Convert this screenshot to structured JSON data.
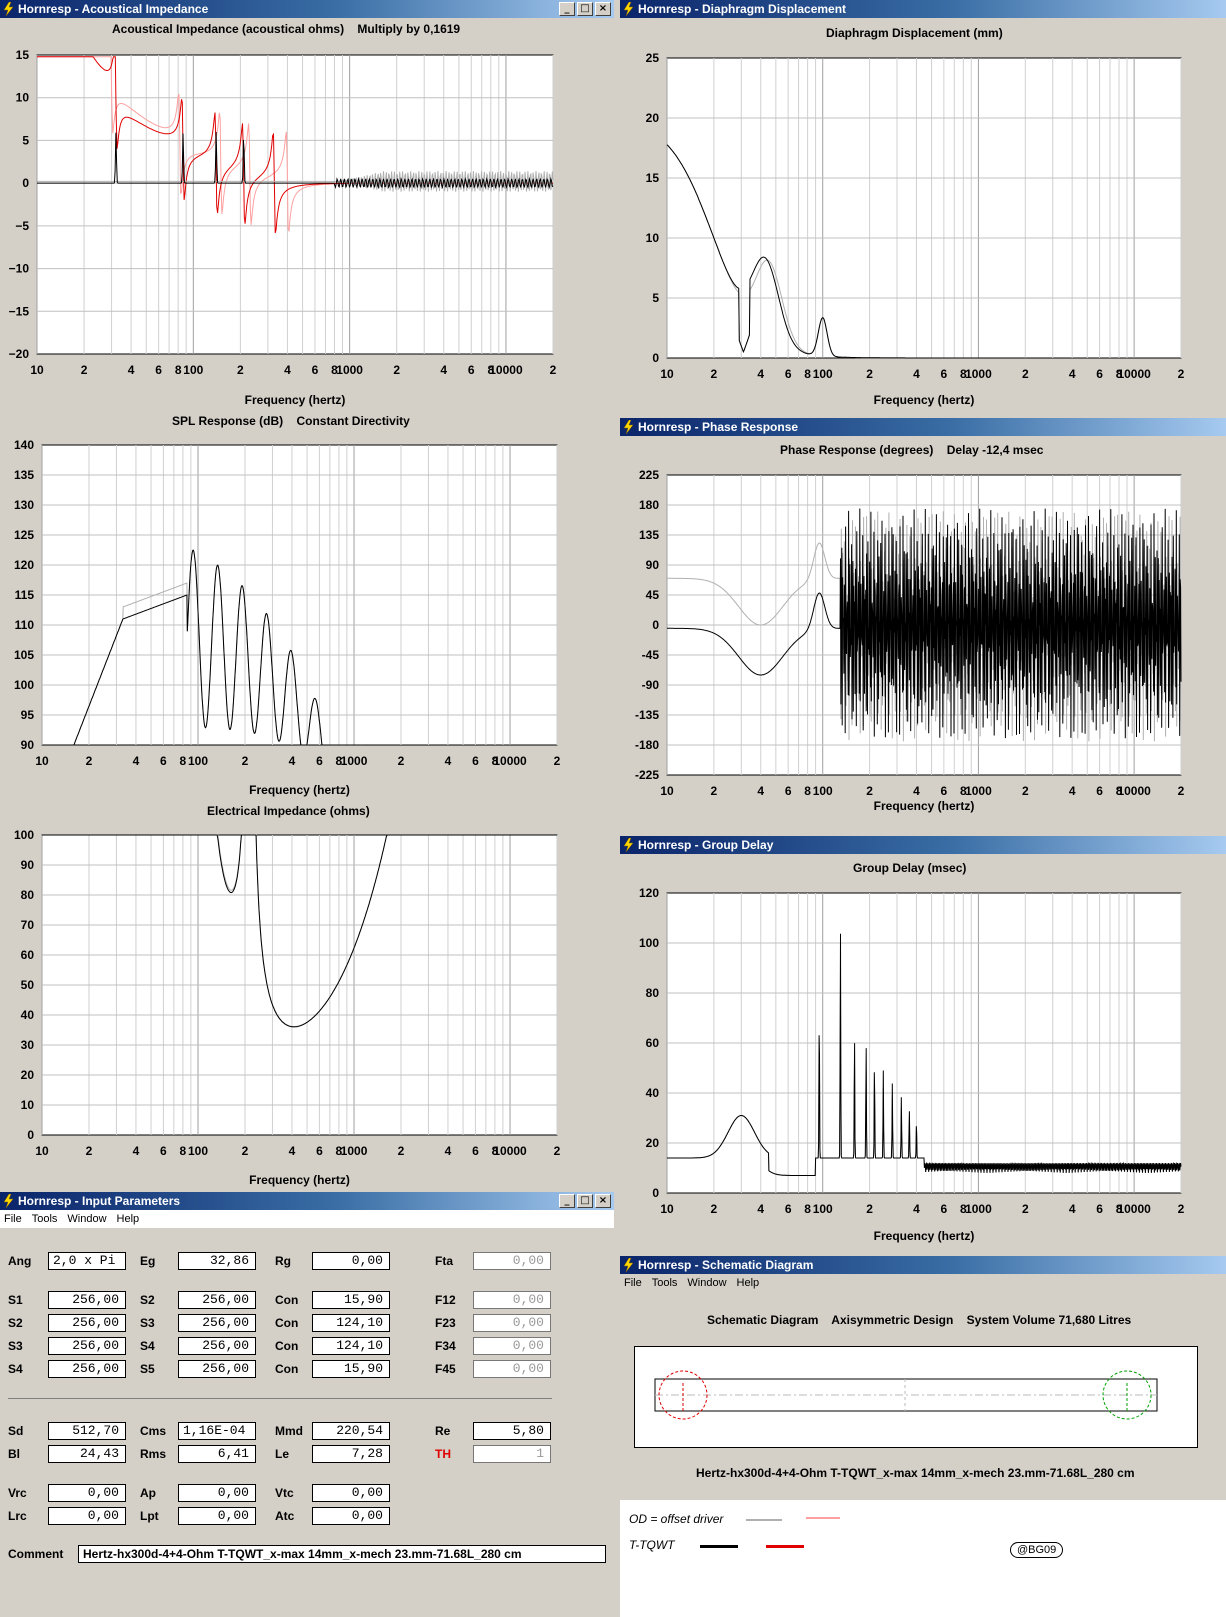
{
  "app_name": "Hornresp",
  "title_sep": " - ",
  "windows": {
    "acoustical": {
      "title": "Acoustical Impedance",
      "header": "Acoustical Impedance (acoustical ohms)    Multiply by 0,1619",
      "yticks": [
        "15",
        "10",
        "5",
        "0",
        "−5",
        "−10",
        "−15",
        "−20"
      ],
      "xlabel": "Frequency (hertz)"
    },
    "spl": {
      "header": "SPL Response (dB)    Constant Directivity",
      "yticks": [
        "140",
        "135",
        "130",
        "125",
        "120",
        "115",
        "110",
        "105",
        "100",
        "95",
        "90"
      ],
      "xlabel": "Frequency (hertz)"
    },
    "elec": {
      "header": "Electrical Impedance (ohms)",
      "yticks": [
        "100",
        "90",
        "80",
        "70",
        "60",
        "50",
        "40",
        "30",
        "20",
        "10",
        "0"
      ],
      "xlabel": "Frequency (hertz)"
    },
    "displacement": {
      "title": "Diaphragm Displacement",
      "header": "Diaphragm Displacement (mm)",
      "yticks": [
        "25",
        "20",
        "15",
        "10",
        "5",
        "0"
      ],
      "xlabel": "Frequency (hertz)"
    },
    "phase": {
      "title": "Phase Response",
      "header": "Phase Response (degrees)    Delay -12,4 msec",
      "yticks": [
        "225",
        "180",
        "135",
        "90",
        "45",
        "0",
        "-45",
        "-90",
        "-135",
        "-180",
        "-225"
      ],
      "xlabel": "Frequency (hertz)"
    },
    "group": {
      "title": "Group Delay",
      "header": "Group Delay (msec)",
      "yticks": [
        "120",
        "100",
        "80",
        "60",
        "40",
        "20",
        "0"
      ],
      "xlabel": "Frequency (hertz)"
    },
    "input": {
      "title": "Input Parameters"
    },
    "schematic": {
      "title": "Schematic Diagram",
      "header": "Schematic Diagram    Axisymmetric Design    System Volume 71,680 Litres",
      "caption": "Hertz-hx300d-4+4-Ohm T-TQWT_x-max 14mm_x-mech 23.mm-71.68L_280 cm"
    }
  },
  "xticks": [
    "10",
    "2",
    "4",
    "6",
    "8",
    "100",
    "2",
    "4",
    "6",
    "8",
    "1000",
    "2",
    "4",
    "6",
    "8",
    "10000",
    "2"
  ],
  "menu": [
    "File",
    "Tools",
    "Window",
    "Help"
  ],
  "params": {
    "rows1": [
      [
        {
          "l": "Ang",
          "v": "2,0 x Pi",
          "left": true
        },
        {
          "l": "Eg",
          "v": "32,86"
        },
        {
          "l": "Rg",
          "v": "0,00"
        },
        {
          "l": "Fta",
          "v": "0,00",
          "dis": true
        }
      ]
    ],
    "rows2": [
      [
        {
          "l": "S1",
          "v": "256,00"
        },
        {
          "l": "S2",
          "v": "256,00"
        },
        {
          "l": "Con",
          "v": "15,90"
        },
        {
          "l": "F12",
          "v": "0,00",
          "dis": true
        }
      ],
      [
        {
          "l": "S2",
          "v": "256,00"
        },
        {
          "l": "S3",
          "v": "256,00"
        },
        {
          "l": "Con",
          "v": "124,10"
        },
        {
          "l": "F23",
          "v": "0,00",
          "dis": true
        }
      ],
      [
        {
          "l": "S3",
          "v": "256,00"
        },
        {
          "l": "S4",
          "v": "256,00"
        },
        {
          "l": "Con",
          "v": "124,10"
        },
        {
          "l": "F34",
          "v": "0,00",
          "dis": true
        }
      ],
      [
        {
          "l": "S4",
          "v": "256,00"
        },
        {
          "l": "S5",
          "v": "256,00"
        },
        {
          "l": "Con",
          "v": "15,90"
        },
        {
          "l": "F45",
          "v": "0,00",
          "dis": true
        }
      ]
    ],
    "rows3": [
      [
        {
          "l": "Sd",
          "v": "512,70"
        },
        {
          "l": "Cms",
          "v": "1,16E-04",
          "left": true
        },
        {
          "l": "Mmd",
          "v": "220,54"
        },
        {
          "l": "Re",
          "v": "5,80"
        }
      ],
      [
        {
          "l": "Bl",
          "v": "24,43"
        },
        {
          "l": "Rms",
          "v": "6,41"
        },
        {
          "l": "Le",
          "v": "7,28"
        },
        {
          "l": "TH",
          "v": "1",
          "dis": true,
          "red": true
        }
      ]
    ],
    "rows4": [
      [
        {
          "l": "Vrc",
          "v": "0,00"
        },
        {
          "l": "Ap",
          "v": "0,00"
        },
        {
          "l": "Vtc",
          "v": "0,00"
        }
      ],
      [
        {
          "l": "Lrc",
          "v": "0,00"
        },
        {
          "l": "Lpt",
          "v": "0,00"
        },
        {
          "l": "Atc",
          "v": "0,00"
        }
      ]
    ],
    "comment_label": "Comment",
    "comment": "Hertz-hx300d-4+4-Ohm T-TQWT_x-max 14mm_x-mech 23.mm-71.68L_280 cm"
  },
  "legend": {
    "offset": "OD = offset driver",
    "ttqwt": "T-TQWT",
    "badge": "@BG09"
  },
  "colors": {
    "titlebar": "#0a246a",
    "trace_main": "#000000",
    "trace_offset": "#b0b0b0",
    "trace_red": "#e00000",
    "trace_pink": "#ffa0a0"
  }
}
